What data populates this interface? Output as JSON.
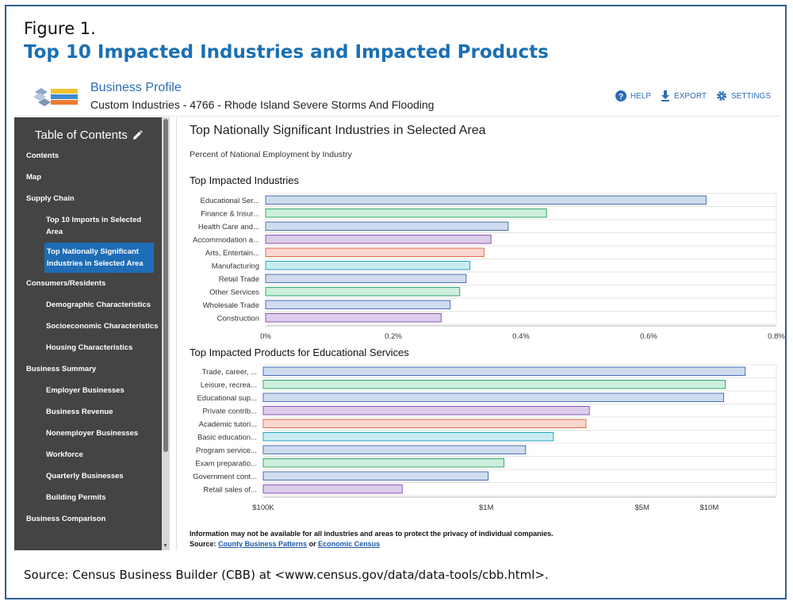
{
  "figure": {
    "label": "Figure 1.",
    "title": "Top 10 Impacted Industries and Impacted Products",
    "source": "Source: Census Business Builder (CBB) at <www.census.gov/data/data-tools/cbb.html>."
  },
  "header": {
    "title": "Business Profile",
    "subtitle": "Custom Industries - 4766 - Rhode Island Severe Storms And Flooding",
    "actions": [
      {
        "label": "HELP",
        "icon": "help-icon"
      },
      {
        "label": "EXPORT",
        "icon": "download-icon"
      },
      {
        "label": "SETTINGS",
        "icon": "gear-icon"
      }
    ]
  },
  "sidebar": {
    "heading": "Table of Contents",
    "items": [
      {
        "label": "Contents",
        "level": 0
      },
      {
        "label": "Map",
        "level": 0
      },
      {
        "label": "Supply Chain",
        "level": 0
      },
      {
        "label": "Top 10 Imports in Selected Area",
        "level": 1
      },
      {
        "label": "Top Nationally Significant Industries in Selected Area",
        "level": 1,
        "active": true
      },
      {
        "label": "Consumers/Residents",
        "level": 0
      },
      {
        "label": "Demographic Characteristics",
        "level": 1
      },
      {
        "label": "Socioeconomic Characteristics",
        "level": 1
      },
      {
        "label": "Housing Characteristics",
        "level": 1
      },
      {
        "label": "Business Summary",
        "level": 0
      },
      {
        "label": "Employer Businesses",
        "level": 1
      },
      {
        "label": "Business Revenue",
        "level": 1
      },
      {
        "label": "Nonemployer Businesses",
        "level": 1
      },
      {
        "label": "Workforce",
        "level": 1
      },
      {
        "label": "Quarterly Businesses",
        "level": 1
      },
      {
        "label": "Building Permits",
        "level": 1
      },
      {
        "label": "Business Comparison",
        "level": 0
      }
    ]
  },
  "content": {
    "title": "Top Nationally Significant Industries in Selected Area",
    "subtitle": "Percent of National Employment by Industry",
    "section1": "Top Impacted Industries",
    "section2": "Top Impacted Products for Educational Services",
    "footnote": "Information may not be available for all industries and areas to protect the privacy of individual companies.",
    "source_prefix": "Source:",
    "source_link1": "County Business Patterns",
    "source_or": "or",
    "source_link2": "Economic Census"
  },
  "colors": {
    "blue": {
      "fill": "#cfdcef",
      "stroke": "#4a6fb0"
    },
    "green": {
      "fill": "#cdeedd",
      "stroke": "#2fa86a"
    },
    "purple": {
      "fill": "#dccdea",
      "stroke": "#8a55b5"
    },
    "orange": {
      "fill": "#fbd8cf",
      "stroke": "#e46a49"
    },
    "cyan": {
      "fill": "#c8ecf2",
      "stroke": "#2aa6bd"
    },
    "accent": "#1e6db5"
  },
  "chart_data": [
    {
      "type": "bar",
      "orientation": "horizontal",
      "title": "Top Impacted Industries",
      "categories": [
        "Educational Ser...",
        "Finance & Insur...",
        "Health Care and...",
        "Accommodation a...",
        "Arts, Entertain...",
        "Manufacturing",
        "Retail Trade",
        "Other Services",
        "Wholesale Trade",
        "Construction"
      ],
      "values": [
        0.69,
        0.44,
        0.38,
        0.353,
        0.342,
        0.32,
        0.314,
        0.304,
        0.289,
        0.275
      ],
      "bar_colors": [
        "blue",
        "green",
        "blue",
        "purple",
        "orange",
        "cyan",
        "blue",
        "green",
        "blue",
        "purple"
      ],
      "xlim": [
        0,
        0.8
      ],
      "ticks": [
        0,
        0.2,
        0.4,
        0.6,
        0.8
      ],
      "tick_labels": [
        "0%",
        "0.2%",
        "0.4%",
        "0.6%",
        "0.8%"
      ],
      "unit": "%",
      "grid": true
    },
    {
      "type": "bar",
      "orientation": "horizontal",
      "title": "Top Impacted Products for Educational Services",
      "categories": [
        "Trade, career, ...",
        "Leisure, recrea...",
        "Educational sup...",
        "Private contrib...",
        "Academic tutori...",
        "Basic education...",
        "Program service...",
        "Exam preparatio...",
        "Government cont...",
        "Retail sales of..."
      ],
      "values": [
        14500000,
        11800000,
        11600000,
        2900000,
        2800000,
        2000000,
        1500000,
        1200000,
        1020000,
        420000
      ],
      "bar_colors": [
        "blue",
        "green",
        "blue",
        "purple",
        "orange",
        "cyan",
        "blue",
        "green",
        "blue",
        "purple"
      ],
      "scale": "log",
      "xlim": [
        100000,
        20000000
      ],
      "ticks": [
        100000,
        1000000,
        5000000,
        10000000
      ],
      "tick_labels": [
        "$100K",
        "$1M",
        "$5M",
        "$10M"
      ],
      "grid": true
    }
  ]
}
